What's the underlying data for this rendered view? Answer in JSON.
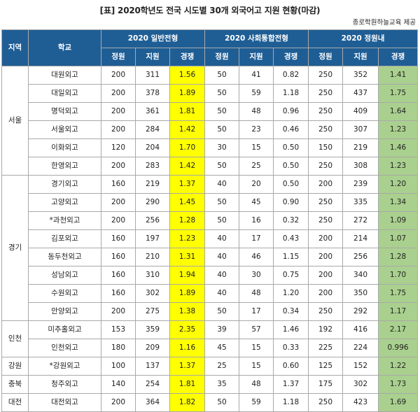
{
  "title": "[표] 2020학년도 전국 시도별 30개 외국어고 지원 현황(마감)",
  "source": "종로학원하늘교육 제공",
  "headers": {
    "region": "지역",
    "school": "학교",
    "group1": "2020 일반전형",
    "group2": "2020 사회통합전형",
    "group3": "2020 정원내",
    "quota": "정원",
    "applicants": "지원",
    "competition": "경쟁"
  },
  "regions": [
    {
      "name": "서울",
      "rows": [
        {
          "school": "대원외고",
          "g1": [
            "200",
            "311",
            "1.56"
          ],
          "g2": [
            "50",
            "41",
            "0.82"
          ],
          "g3": [
            "250",
            "352",
            "1.41"
          ]
        },
        {
          "school": "대일외고",
          "g1": [
            "200",
            "378",
            "1.89"
          ],
          "g2": [
            "50",
            "59",
            "1.18"
          ],
          "g3": [
            "250",
            "437",
            "1.75"
          ]
        },
        {
          "school": "명덕외고",
          "g1": [
            "200",
            "361",
            "1.81"
          ],
          "g2": [
            "50",
            "48",
            "0.96"
          ],
          "g3": [
            "250",
            "409",
            "1.64"
          ]
        },
        {
          "school": "서울외고",
          "g1": [
            "200",
            "284",
            "1.42"
          ],
          "g2": [
            "50",
            "23",
            "0.46"
          ],
          "g3": [
            "250",
            "307",
            "1.23"
          ]
        },
        {
          "school": "이화외고",
          "g1": [
            "120",
            "204",
            "1.70"
          ],
          "g2": [
            "30",
            "15",
            "0.50"
          ],
          "g3": [
            "150",
            "219",
            "1.46"
          ]
        },
        {
          "school": "한영외고",
          "g1": [
            "200",
            "283",
            "1.42"
          ],
          "g2": [
            "50",
            "25",
            "0.50"
          ],
          "g3": [
            "250",
            "308",
            "1.23"
          ]
        }
      ]
    },
    {
      "name": "경기",
      "rows": [
        {
          "school": "경기외고",
          "g1": [
            "160",
            "219",
            "1.37"
          ],
          "g2": [
            "40",
            "20",
            "0.50"
          ],
          "g3": [
            "200",
            "239",
            "1.20"
          ]
        },
        {
          "school": "고양외고",
          "g1": [
            "200",
            "290",
            "1.45"
          ],
          "g2": [
            "50",
            "45",
            "0.90"
          ],
          "g3": [
            "250",
            "335",
            "1.34"
          ]
        },
        {
          "school": "*과천외고",
          "g1": [
            "200",
            "256",
            "1.28"
          ],
          "g2": [
            "50",
            "16",
            "0.32"
          ],
          "g3": [
            "250",
            "272",
            "1.09"
          ]
        },
        {
          "school": "김포외고",
          "g1": [
            "160",
            "197",
            "1.23"
          ],
          "g2": [
            "40",
            "17",
            "0.43"
          ],
          "g3": [
            "200",
            "214",
            "1.07"
          ]
        },
        {
          "school": "동두천외고",
          "g1": [
            "160",
            "210",
            "1.31"
          ],
          "g2": [
            "40",
            "46",
            "1.15"
          ],
          "g3": [
            "200",
            "256",
            "1.28"
          ]
        },
        {
          "school": "성남외고",
          "g1": [
            "160",
            "310",
            "1.94"
          ],
          "g2": [
            "40",
            "30",
            "0.75"
          ],
          "g3": [
            "200",
            "340",
            "1.70"
          ]
        },
        {
          "school": "수원외고",
          "g1": [
            "160",
            "302",
            "1.89"
          ],
          "g2": [
            "40",
            "48",
            "1.20"
          ],
          "g3": [
            "200",
            "350",
            "1.75"
          ]
        },
        {
          "school": "안양외고",
          "g1": [
            "200",
            "275",
            "1.38"
          ],
          "g2": [
            "50",
            "17",
            "0.34"
          ],
          "g3": [
            "250",
            "292",
            "1.17"
          ]
        }
      ]
    },
    {
      "name": "인천",
      "rows": [
        {
          "school": "미추홀외고",
          "g1": [
            "153",
            "359",
            "2.35"
          ],
          "g2": [
            "39",
            "57",
            "1.46"
          ],
          "g3": [
            "192",
            "416",
            "2.17"
          ]
        },
        {
          "school": "인천외고",
          "g1": [
            "180",
            "209",
            "1.16"
          ],
          "g2": [
            "45",
            "15",
            "0.33"
          ],
          "g3": [
            "225",
            "224",
            "0.996"
          ]
        }
      ]
    },
    {
      "name": "강원",
      "rows": [
        {
          "school": "*강원외고",
          "g1": [
            "100",
            "137",
            "1.37"
          ],
          "g2": [
            "25",
            "15",
            "0.60"
          ],
          "g3": [
            "125",
            "152",
            "1.22"
          ]
        }
      ]
    },
    {
      "name": "충북",
      "rows": [
        {
          "school": "청주외고",
          "g1": [
            "140",
            "254",
            "1.81"
          ],
          "g2": [
            "35",
            "48",
            "1.37"
          ],
          "g3": [
            "175",
            "302",
            "1.73"
          ]
        }
      ]
    },
    {
      "name": "대전",
      "rows": [
        {
          "school": "대전외고",
          "g1": [
            "200",
            "364",
            "1.82"
          ],
          "g2": [
            "50",
            "59",
            "1.18"
          ],
          "g3": [
            "250",
            "423",
            "1.69"
          ]
        }
      ]
    }
  ]
}
